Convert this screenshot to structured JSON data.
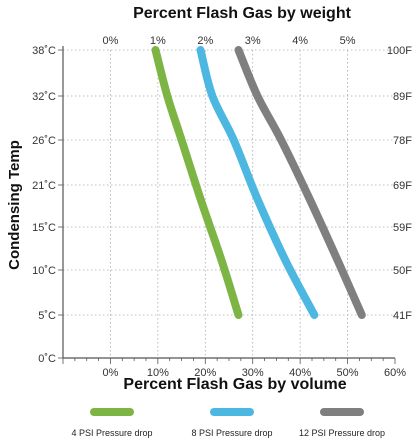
{
  "chart_data": {
    "type": "line",
    "title": "Percent Flash Gas by weight",
    "xlabel": "Percent Flash Gas by volume",
    "ylabel": "Condensing Temp",
    "x_bottom": {
      "range": [
        -10,
        60
      ],
      "ticks": [
        0,
        10,
        20,
        30,
        40,
        50,
        60
      ],
      "tick_labels": [
        "0%",
        "10%",
        "20%",
        "30%",
        "40%",
        "50%",
        "60%"
      ]
    },
    "x_top": {
      "range": [
        -1,
        6
      ],
      "ticks": [
        0,
        1,
        2,
        3,
        4,
        5
      ],
      "tick_labels": [
        "0%",
        "1%",
        "2%",
        "3%",
        "4%",
        "5%"
      ]
    },
    "y_left": {
      "range": [
        0,
        38
      ],
      "ticks": [
        0,
        5,
        10,
        15,
        21,
        26,
        32,
        38
      ],
      "tick_labels": [
        "0˚C",
        "5˚C",
        "10˚C",
        "15˚C",
        "21˚C",
        "26˚C",
        "32˚C",
        "38˚C"
      ]
    },
    "y_right": {
      "tick_labels": [
        "100F",
        "89F",
        "78F",
        "69F",
        "59F",
        "50F",
        "41F"
      ]
    },
    "grid": true,
    "series": [
      {
        "name": "4 PSI Pressure drop",
        "color": "#7db545",
        "x": [
          9.5,
          12.0,
          15.0,
          19.0,
          23.5,
          27.0
        ],
        "y": [
          38,
          32,
          26,
          19,
          11,
          5
        ]
      },
      {
        "name": "8 PSI Pressure drop",
        "color": "#4cb8e2",
        "x": [
          19.0,
          21.5,
          26.0,
          31.0,
          37.0,
          43.0
        ],
        "y": [
          38,
          32,
          26,
          19,
          11,
          5
        ]
      },
      {
        "name": "12 PSI Pressure drop",
        "color": "#7f7f7f",
        "x": [
          27.0,
          31.0,
          36.0,
          42.0,
          48.0,
          53.0
        ],
        "y": [
          38,
          32,
          26,
          19,
          11,
          5
        ]
      }
    ],
    "legend_position": "bottom"
  }
}
